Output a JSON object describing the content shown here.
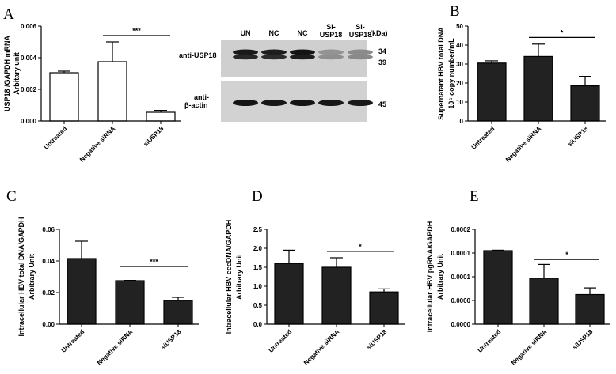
{
  "chart_data": [
    {
      "id": "A",
      "panel_label": "A",
      "type": "bar",
      "bar_fill": "#ffffff",
      "categories": [
        "Untreated",
        "Negative siRNA",
        "siUSP18"
      ],
      "values": [
        0.00305,
        0.00375,
        0.00055
      ],
      "errors": [
        0.0001,
        0.00125,
        0.00012
      ],
      "ylabel_lines": [
        "USP18 /GAPDH mRNA",
        "Arbitary unit"
      ],
      "ylim": [
        0,
        0.006
      ],
      "yticks": [
        0,
        0.002,
        0.004,
        0.006
      ],
      "ytick_labels": [
        "0.000",
        "0.002",
        "0.004",
        "0.006"
      ],
      "significance": {
        "from": 1,
        "to": 2,
        "label": "***",
        "y": 0.0054
      }
    },
    {
      "id": "B",
      "panel_label": "B",
      "type": "bar",
      "bar_fill": "#222222",
      "categories": [
        "Untreated",
        "Negative siRNA",
        "siUSP18"
      ],
      "values": [
        30.5,
        34,
        18.5
      ],
      "errors": [
        1.2,
        6.5,
        5
      ],
      "ylabel_lines": [
        "Supernatant HBV total DNA",
        "10⁶ copy number/mL"
      ],
      "ylim": [
        0,
        50
      ],
      "yticks": [
        0,
        10,
        20,
        30,
        40,
        50
      ],
      "ytick_labels": [
        "0",
        "10",
        "20",
        "30",
        "40",
        "50"
      ],
      "significance": {
        "from": 1,
        "to": 2,
        "label": "*",
        "y": 44
      }
    },
    {
      "id": "C",
      "panel_label": "C",
      "type": "bar",
      "bar_fill": "#222222",
      "categories": [
        "Untreated",
        "Negative siRNA",
        "siUSP18"
      ],
      "values": [
        0.0415,
        0.0275,
        0.015
      ],
      "errors": [
        0.011,
        0.0002,
        0.002
      ],
      "ylabel_lines": [
        "Intracellular HBV total DNA/GAPDH",
        "Arbitrary Unit"
      ],
      "ylim": [
        0,
        0.06
      ],
      "yticks": [
        0,
        0.02,
        0.04,
        0.06
      ],
      "ytick_labels": [
        "0.00",
        "0.02",
        "0.04",
        "0.06"
      ],
      "significance": {
        "from": 1,
        "to": 2,
        "label": "***",
        "y": 0.0365
      }
    },
    {
      "id": "D",
      "panel_label": "D",
      "type": "bar",
      "bar_fill": "#222222",
      "categories": [
        "Untreated",
        "Negative siRNA",
        "siUSP18"
      ],
      "values": [
        1.6,
        1.5,
        0.85
      ],
      "errors": [
        0.35,
        0.25,
        0.08
      ],
      "ylabel_lines": [
        "Intracellular HBV cccDNA/GAPDH",
        "Arbitrary Unit"
      ],
      "ylim": [
        0,
        2.5
      ],
      "yticks": [
        0,
        0.5,
        1.0,
        1.5,
        2.0,
        2.5
      ],
      "ytick_labels": [
        "0.0",
        "0.5",
        "1.0",
        "1.5",
        "2.0",
        "2.5"
      ],
      "significance": {
        "from": 1,
        "to": 2,
        "label": "*",
        "y": 1.92
      }
    },
    {
      "id": "E",
      "panel_label": "E",
      "type": "bar",
      "bar_fill": "#222222",
      "categories": [
        "Untreated",
        "Negative siRNA",
        "siUSP18"
      ],
      "values": [
        0.000155,
        9.7e-05,
        6.25e-05
      ],
      "errors": [
        1e-06,
        2.9e-05,
        1.4e-05
      ],
      "ylabel_lines": [
        "Intracellular HBV pgRNA/GAPDH",
        "Arbitrary Unit"
      ],
      "ylim": [
        0,
        0.0002
      ],
      "yticks": [
        0,
        5e-05,
        0.0001,
        0.00015,
        0.0002
      ],
      "ytick_labels": [
        "0.0000",
        "0.0000",
        "0.0001",
        "0.0001",
        "0.0002"
      ],
      "significance": {
        "from": 1,
        "to": 2,
        "label": "*",
        "y": 0.0001365
      }
    }
  ],
  "blot": {
    "lanes": [
      "UN",
      "NC",
      "NC",
      "Si-\nUSP18",
      "Si-\nUSP18"
    ],
    "kda_label": "(kDa)",
    "rows": [
      {
        "label": "anti-USP18",
        "markers": [
          "34",
          "39"
        ],
        "intensity_top": [
          0.92,
          0.9,
          0.95,
          0.28,
          0.32
        ],
        "intensity_bottom": [
          0.85,
          0.82,
          0.9,
          0.3,
          0.33
        ]
      },
      {
        "label": "anti-\nβ-actin",
        "markers": [
          "45"
        ],
        "intensity": [
          0.95,
          0.93,
          0.95,
          0.93,
          0.92
        ]
      }
    ]
  }
}
